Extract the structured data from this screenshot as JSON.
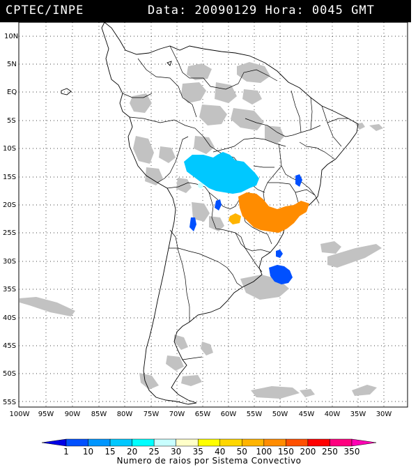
{
  "header": {
    "agency": "CPTEC/INPE",
    "datetime": "Data: 20090129 Hora: 0045 GMT"
  },
  "map": {
    "lat_labels": [
      "10N",
      "5N",
      "EQ",
      "5S",
      "10S",
      "15S",
      "20S",
      "25S",
      "30S",
      "35S",
      "40S",
      "45S",
      "50S",
      "55S"
    ],
    "lon_labels": [
      "100W",
      "95W",
      "90W",
      "85W",
      "80W",
      "75W",
      "70W",
      "65W",
      "60W",
      "55W",
      "50W",
      "45W",
      "40W",
      "35W",
      "30W"
    ],
    "colors": {
      "land_outline": "#000000",
      "cloud": "#c0c0c0",
      "grid": "#000000"
    }
  },
  "legend": {
    "caption": "Numero de raios por Sistema Convectivo",
    "ticks": [
      "1",
      "10",
      "15",
      "20",
      "25",
      "30",
      "35",
      "40",
      "50",
      "100",
      "150",
      "200",
      "250",
      "350"
    ],
    "colors": [
      "#0000e6",
      "#0050ff",
      "#0096ff",
      "#00c8ff",
      "#00ffff",
      "#c8ffff",
      "#ffffc8",
      "#ffff00",
      "#ffd700",
      "#ffb400",
      "#ff8c00",
      "#ff5000",
      "#ff0000",
      "#ff007f",
      "#ff00b4"
    ]
  },
  "systems": [
    {
      "name": "mato-grosso-cluster",
      "color_index": 3
    },
    {
      "name": "sao-paulo-cluster",
      "color_index": 11
    },
    {
      "name": "rio-grande-do-sul-cluster",
      "color_index": 1
    }
  ]
}
